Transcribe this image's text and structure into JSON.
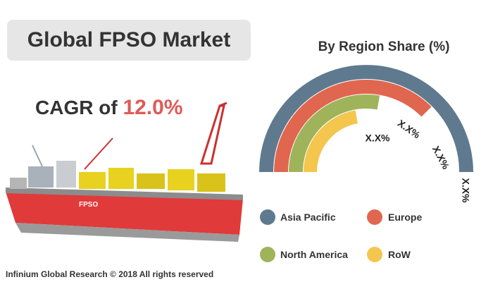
{
  "title": "Global FPSO Market",
  "cagr": {
    "prefix": "CAGR of ",
    "value": "12.0%"
  },
  "footer": "Infinium Global Research © 2018 All rights reserved",
  "chart_data": {
    "type": "pie",
    "title": "By Region Share (%)",
    "legend_position": "bottom",
    "series": [
      {
        "name": "Asia Pacific",
        "label": "X.X%",
        "color": "#5f7a8e"
      },
      {
        "name": "Europe",
        "label": "X.X%",
        "color": "#e06650"
      },
      {
        "name": "North America",
        "label": "X.X%",
        "color": "#9fb35b"
      },
      {
        "name": "RoW",
        "label": "X.X%",
        "color": "#f4c64e"
      }
    ]
  },
  "ship": {
    "hull_text": "FPSO",
    "colors": {
      "hull": "#e03a3a",
      "deck": "#8c8c8c",
      "modules": "#e8d21f",
      "crane": "#cc3030"
    }
  }
}
